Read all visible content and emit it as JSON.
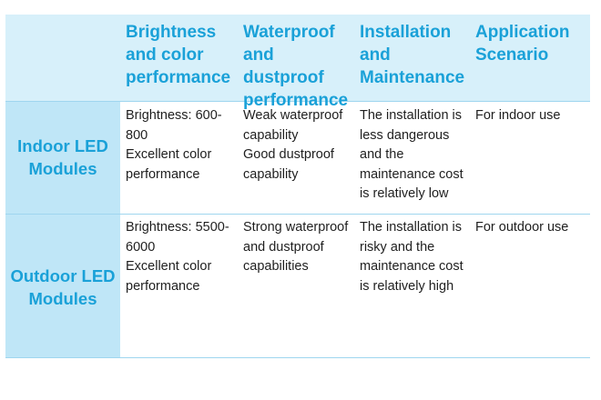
{
  "table": {
    "headers": [
      "Brightness and color performance",
      "Waterproof and dustproof performance",
      "Installation and Maintenance",
      "Application Scenario"
    ],
    "rows": [
      {
        "label": "Indoor LED Modules",
        "cells": [
          "Brightness: 600-800\nExcellent color performance",
          "Weak waterproof capability\nGood dustproof capability",
          "The installation is less dangerous and the maintenance cost is relatively low",
          "For indoor use"
        ]
      },
      {
        "label": "Outdoor LED Modules",
        "cells": [
          "Brightness: 5500-6000\nExcellent color performance",
          "Strong waterproof and dustproof capabilities",
          "The installation is risky and the maintenance cost is relatively high",
          "For outdoor use"
        ]
      }
    ],
    "colors": {
      "header_text": "#1aa1d8",
      "header_bg": "#d7f0fa",
      "side_bg": "#bfe6f7",
      "divider": "#9fd6ef"
    }
  }
}
